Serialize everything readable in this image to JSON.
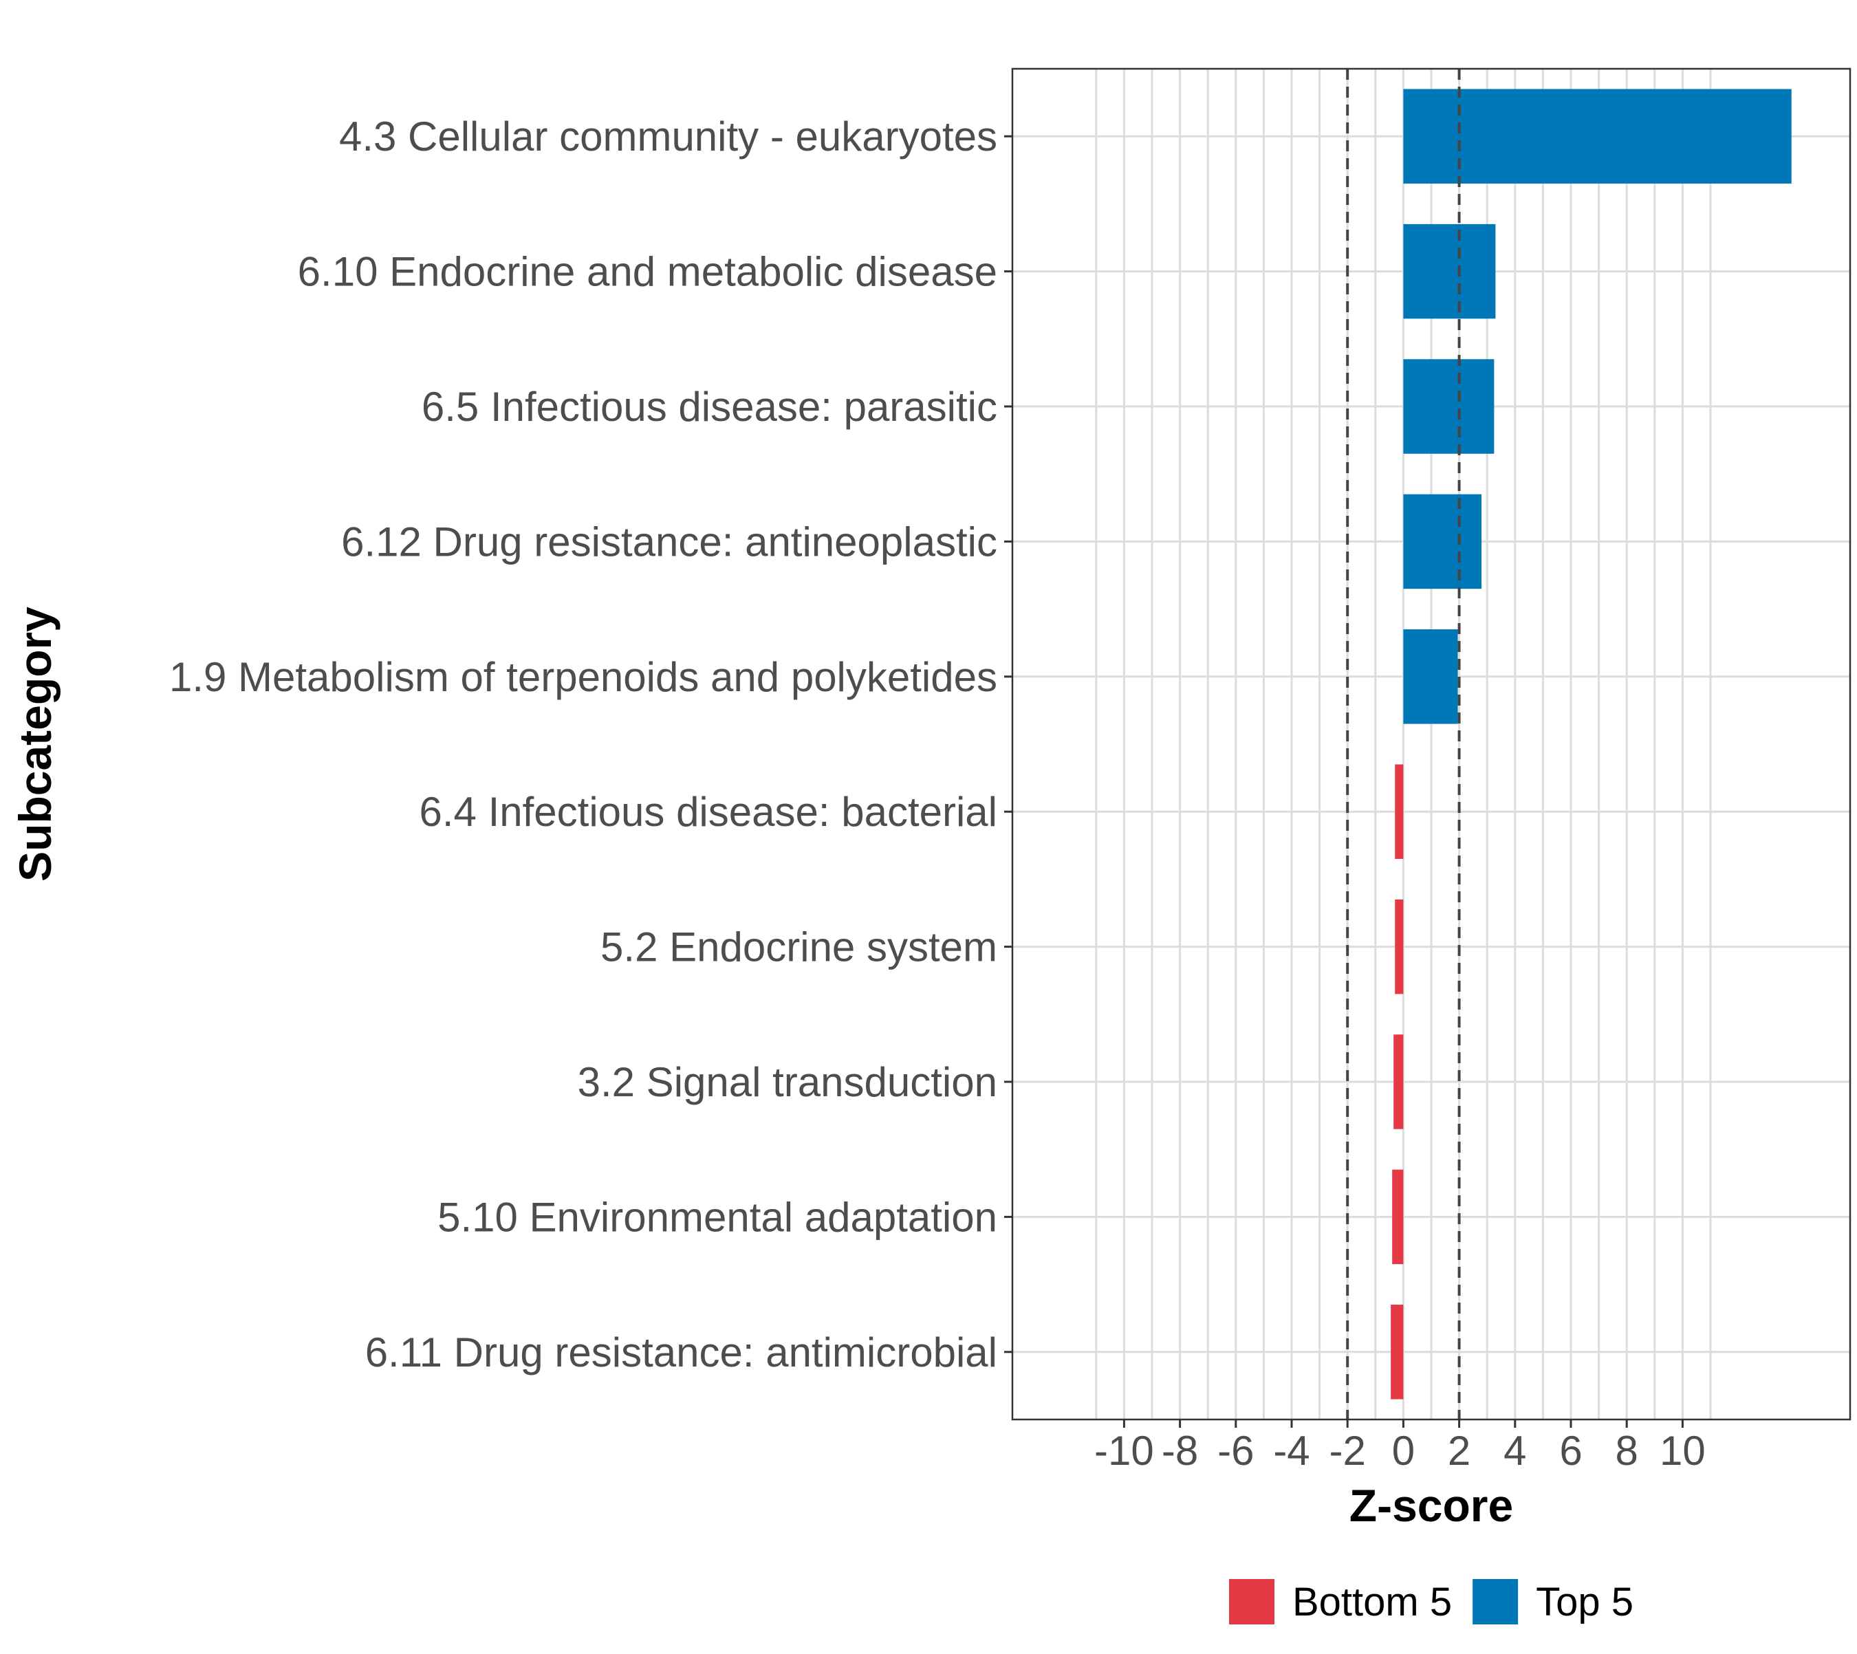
{
  "chart_data": {
    "type": "bar",
    "orientation": "horizontal",
    "title": "",
    "xlabel": "Z-score",
    "ylabel": "Subcategory",
    "xlim": [
      -14,
      16
    ],
    "xticks": [
      -10,
      -8,
      -6,
      -4,
      -2,
      0,
      2,
      4,
      6,
      8,
      10
    ],
    "xtick_labels": [
      "-10",
      "-8",
      "-6",
      "-4",
      "-2",
      "0",
      "2",
      "4",
      "6",
      "8",
      "10"
    ],
    "grid": true,
    "reference_lines": [
      -2,
      2
    ],
    "categories": [
      "4.3 Cellular community - eukaryotes",
      "6.10 Endocrine and metabolic disease",
      "6.5 Infectious disease: parasitic",
      "6.12 Drug resistance: antineoplastic",
      "1.9 Metabolism of terpenoids and polyketides",
      "6.4 Infectious disease: bacterial",
      "5.2 Endocrine system",
      "3.2 Signal transduction",
      "5.10 Environmental adaptation",
      "6.11 Drug resistance: antimicrobial"
    ],
    "values": [
      13.9,
      3.3,
      3.25,
      2.8,
      1.95,
      -0.3,
      -0.3,
      -0.35,
      -0.4,
      -0.45
    ],
    "groups": [
      "Top 5",
      "Top 5",
      "Top 5",
      "Top 5",
      "Top 5",
      "Bottom 5",
      "Bottom 5",
      "Bottom 5",
      "Bottom 5",
      "Bottom 5"
    ],
    "legend": [
      {
        "name": "Bottom 5",
        "color": "#E63946"
      },
      {
        "name": "Top 5",
        "color": "#0077B6"
      }
    ],
    "legend_position": "bottom"
  }
}
